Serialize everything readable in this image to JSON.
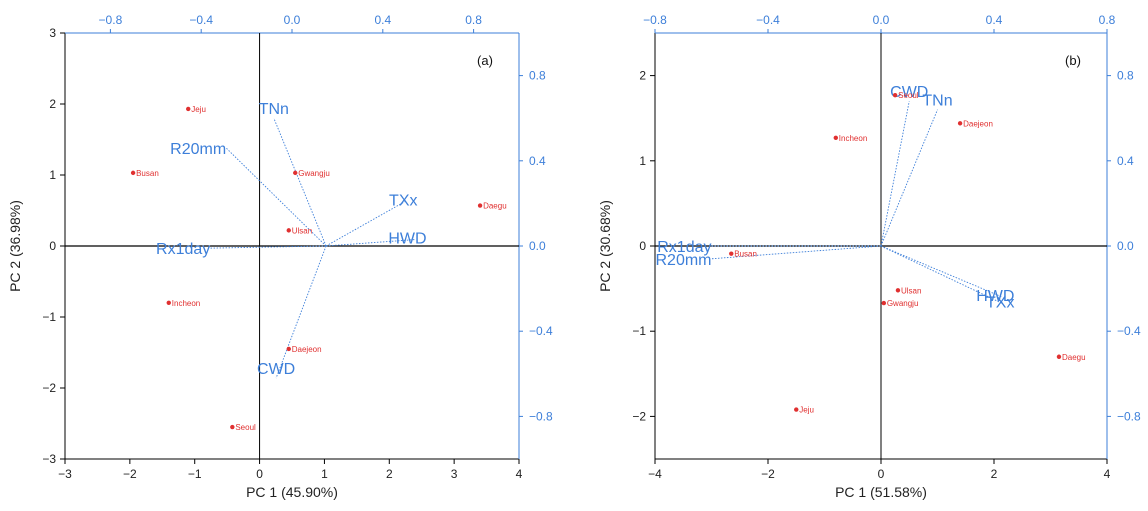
{
  "chart_data": [
    {
      "type": "scatter",
      "panel_label": "(a)",
      "xlabel": "PC 1 (45.90%)",
      "ylabel": "PC 2 (36.98%)",
      "xlim": [
        -3,
        4
      ],
      "ylim": [
        -3,
        3
      ],
      "x_ticks": [
        -3,
        -2,
        -1,
        0,
        1,
        2,
        3,
        4
      ],
      "y_ticks": [
        -3,
        -2,
        -1,
        0,
        1,
        2,
        3
      ],
      "x_tick_labels": [
        "−3",
        "−2",
        "−1",
        "0",
        "1",
        "2",
        "3",
        "4"
      ],
      "y_tick_labels": [
        "−3",
        "−2",
        "−1",
        "0",
        "1",
        "2",
        "3"
      ],
      "loading_xlim": [
        -1,
        1
      ],
      "loading_ylim": [
        -1,
        1
      ],
      "top_ticks": [
        -0.8,
        -0.4,
        0,
        0.4,
        0.8
      ],
      "top_tick_labels": [
        "−0.8",
        "−0.4",
        "0.0",
        "0.4",
        "0.8"
      ],
      "right_ticks": [
        -0.8,
        -0.4,
        0,
        0.4,
        0.8
      ],
      "right_tick_labels": [
        "−0.8",
        "−0.4",
        "0.0",
        "0.4",
        "0.8"
      ],
      "vector_origin": [
        0.15,
        0
      ],
      "grid": false,
      "scores": [
        {
          "label": "Jeju",
          "x": -1.1,
          "y": 1.93
        },
        {
          "label": "Busan",
          "x": -1.95,
          "y": 1.03
        },
        {
          "label": "Gwangju",
          "x": 0.55,
          "y": 1.03
        },
        {
          "label": "Ulsan",
          "x": 0.45,
          "y": 0.22
        },
        {
          "label": "Daegu",
          "x": 3.4,
          "y": 0.57
        },
        {
          "label": "Incheon",
          "x": -1.4,
          "y": -0.8
        },
        {
          "label": "Daejeon",
          "x": 0.45,
          "y": -1.45
        },
        {
          "label": "Seoul",
          "x": -0.42,
          "y": -2.55
        }
      ],
      "loadings": [
        {
          "label": "TNn",
          "x": -0.08,
          "y": 0.6
        },
        {
          "label": "R20mm",
          "x": -0.29,
          "y": 0.46
        },
        {
          "label": "TXx",
          "x": 0.5,
          "y": 0.21
        },
        {
          "label": "HWD",
          "x": 0.54,
          "y": 0.03
        },
        {
          "label": "Rx1day",
          "x": -0.36,
          "y": -0.01
        },
        {
          "label": "CWD",
          "x": -0.07,
          "y": -0.62
        }
      ]
    },
    {
      "type": "scatter",
      "panel_label": "(b)",
      "xlabel": "PC 1 (51.58%)",
      "ylabel": "PC 2 (30.68%)",
      "xlim": [
        -4,
        4
      ],
      "ylim": [
        -2.5,
        2.5
      ],
      "x_ticks": [
        -4,
        -2,
        0,
        2,
        4
      ],
      "y_ticks": [
        -2,
        -1,
        0,
        1,
        2
      ],
      "x_tick_labels": [
        "−4",
        "−2",
        "0",
        "2",
        "4"
      ],
      "y_tick_labels": [
        "−2",
        "−1",
        "0",
        "1",
        "2"
      ],
      "loading_xlim": [
        -0.8,
        0.8
      ],
      "loading_ylim": [
        -1,
        1
      ],
      "top_ticks": [
        -0.8,
        -0.4,
        0,
        0.4,
        0.8
      ],
      "top_tick_labels": [
        "−0.8",
        "−0.4",
        "0.0",
        "0.4",
        "0.8"
      ],
      "right_ticks": [
        -0.8,
        -0.4,
        0,
        0.4,
        0.8
      ],
      "right_tick_labels": [
        "−0.8",
        "−0.4",
        "0.0",
        "0.4",
        "0.8"
      ],
      "vector_origin": [
        0,
        0
      ],
      "grid": false,
      "scores": [
        {
          "label": "Seoul",
          "x": 0.25,
          "y": 1.77
        },
        {
          "label": "Daejeon",
          "x": 1.4,
          "y": 1.44
        },
        {
          "label": "Incheon",
          "x": -0.8,
          "y": 1.27
        },
        {
          "label": "Busan",
          "x": -2.65,
          "y": -0.09
        },
        {
          "label": "Ulsan",
          "x": 0.3,
          "y": -0.52
        },
        {
          "label": "Gwangju",
          "x": 0.05,
          "y": -0.67
        },
        {
          "label": "Daegu",
          "x": 3.15,
          "y": -1.3
        },
        {
          "label": "Jeju",
          "x": -1.5,
          "y": -1.92
        }
      ],
      "loadings": [
        {
          "label": "CWD",
          "x": 0.1,
          "y": 0.68
        },
        {
          "label": "TNn",
          "x": 0.2,
          "y": 0.64
        },
        {
          "label": "Rx1day",
          "x": -0.6,
          "y": 0.0
        },
        {
          "label": "R20mm",
          "x": -0.6,
          "y": -0.06
        },
        {
          "label": "HWD",
          "x": 0.43,
          "y": -0.24
        },
        {
          "label": "TXx",
          "x": 0.43,
          "y": -0.27
        }
      ]
    }
  ]
}
